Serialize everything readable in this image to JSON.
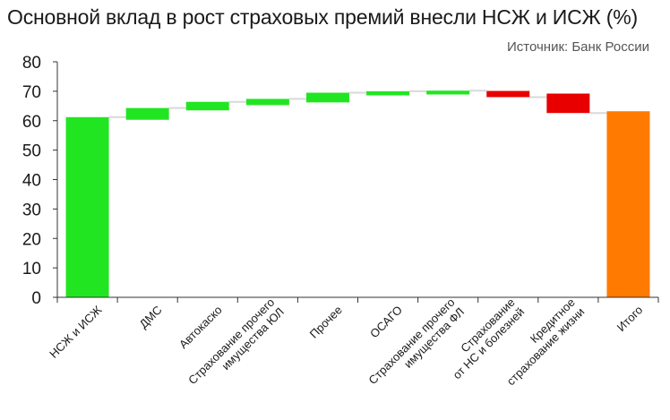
{
  "header": {
    "title": "Основной вклад в рост страховых премий внесли НСЖ и ИСЖ (%)",
    "source": "Источник: Банк России"
  },
  "colors": {
    "positive": "#22e522",
    "negative": "#e80000",
    "total": "#ff7a00",
    "connector": "#d9d9d9",
    "axis": "#333333"
  },
  "chart_data": {
    "type": "bar",
    "subtype": "waterfall",
    "title": "Основной вклад в рост страховых премий внесли НСЖ и ИСЖ (%)",
    "xlabel": "",
    "ylabel": "",
    "ylim": [
      0,
      80
    ],
    "yticks": [
      0,
      10,
      20,
      30,
      40,
      50,
      60,
      70,
      80
    ],
    "grid": false,
    "legend": "none",
    "categories": [
      [
        "НСЖ и ИСЖ"
      ],
      [
        "ДМС"
      ],
      [
        "Автокаско"
      ],
      [
        "Страхование прочего",
        "имущества ЮЛ"
      ],
      [
        "Прочее"
      ],
      [
        "ОСАГО"
      ],
      [
        "Страхование прочего",
        "имущества ФЛ"
      ],
      [
        "Страхование",
        "от НС и болезней"
      ],
      [
        "Кредитное",
        "страхование жизни"
      ],
      [
        "Итого"
      ]
    ],
    "bars": [
      {
        "kind": "total",
        "start": 0,
        "end": 61.2
      },
      {
        "kind": "positive",
        "start": 60.3,
        "end": 64.3
      },
      {
        "kind": "positive",
        "start": 63.5,
        "end": 66.4
      },
      {
        "kind": "positive",
        "start": 65.3,
        "end": 67.4
      },
      {
        "kind": "positive",
        "start": 66.2,
        "end": 69.5
      },
      {
        "kind": "positive",
        "start": 68.6,
        "end": 70.0
      },
      {
        "kind": "positive",
        "start": 68.9,
        "end": 70.2
      },
      {
        "kind": "negative",
        "start": 70.1,
        "end": 68.0
      },
      {
        "kind": "negative",
        "start": 69.2,
        "end": 62.6
      },
      {
        "kind": "total-final",
        "start": 0,
        "end": 63.2
      }
    ]
  }
}
